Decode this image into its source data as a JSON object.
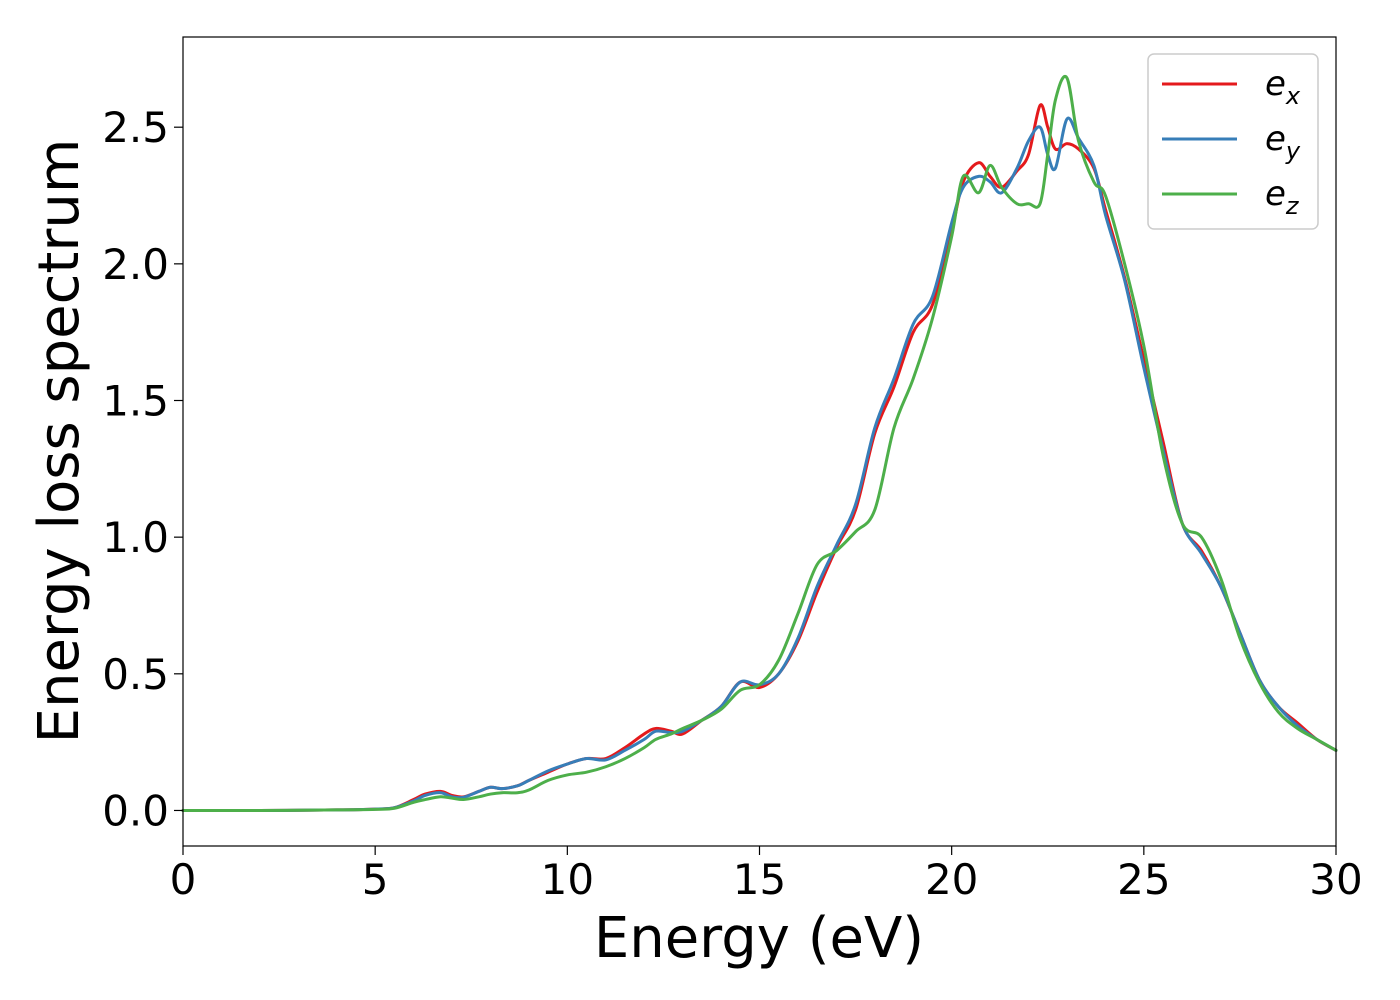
{
  "chart_data": {
    "type": "line",
    "xlabel": "Energy (eV)",
    "ylabel": "Energy loss spectrum",
    "xlim": [
      0,
      30
    ],
    "ylim": [
      -0.13,
      2.83
    ],
    "xticks": [
      0,
      5,
      10,
      15,
      20,
      25,
      30
    ],
    "xtick_labels": [
      "0",
      "5",
      "10",
      "15",
      "20",
      "25",
      "30"
    ],
    "yticks": [
      0.0,
      0.5,
      1.0,
      1.5,
      2.0,
      2.5
    ],
    "ytick_labels": [
      "0.0",
      "0.5",
      "1.0",
      "1.5",
      "2.0",
      "2.5"
    ],
    "grid": false,
    "legend": {
      "position": "top-right",
      "entries": [
        {
          "base": "e",
          "sub": "x"
        },
        {
          "base": "e",
          "sub": "y"
        },
        {
          "base": "e",
          "sub": "z"
        }
      ]
    },
    "series": [
      {
        "name": "e_x",
        "color": "#e41a1c",
        "x": [
          0,
          2,
          4,
          5,
          5.5,
          6,
          6.3,
          6.7,
          7,
          7.3,
          7.7,
          8,
          8.3,
          8.7,
          9,
          9.5,
          10,
          10.5,
          11,
          11.5,
          12,
          12.3,
          12.7,
          13,
          13.5,
          14,
          14.5,
          15,
          15.5,
          16,
          16.5,
          17,
          17.5,
          18,
          18.5,
          19,
          19.5,
          20,
          20.3,
          20.7,
          21,
          21.3,
          21.7,
          22,
          22.3,
          22.5,
          22.7,
          23,
          23.3,
          23.7,
          24,
          24.5,
          25,
          25.5,
          26,
          26.5,
          27,
          27.5,
          28,
          28.5,
          29,
          29.5,
          30
        ],
        "y": [
          0,
          0,
          0.002,
          0.005,
          0.01,
          0.04,
          0.06,
          0.07,
          0.055,
          0.05,
          0.07,
          0.085,
          0.08,
          0.09,
          0.11,
          0.14,
          0.17,
          0.19,
          0.19,
          0.23,
          0.28,
          0.3,
          0.29,
          0.28,
          0.33,
          0.38,
          0.47,
          0.45,
          0.5,
          0.62,
          0.8,
          0.96,
          1.1,
          1.38,
          1.55,
          1.75,
          1.85,
          2.12,
          2.3,
          2.37,
          2.32,
          2.28,
          2.34,
          2.4,
          2.58,
          2.5,
          2.42,
          2.44,
          2.42,
          2.35,
          2.2,
          1.95,
          1.65,
          1.35,
          1.05,
          0.95,
          0.82,
          0.65,
          0.48,
          0.38,
          0.32,
          0.26,
          0.22
        ]
      },
      {
        "name": "e_y",
        "color": "#377eb8",
        "x": [
          0,
          2,
          4,
          5,
          5.5,
          6,
          6.3,
          6.7,
          7,
          7.3,
          7.7,
          8,
          8.3,
          8.7,
          9,
          9.5,
          10,
          10.5,
          11,
          11.5,
          12,
          12.3,
          12.7,
          13,
          13.5,
          14,
          14.5,
          15,
          15.5,
          16,
          16.5,
          17,
          17.5,
          18,
          18.5,
          19,
          19.5,
          20,
          20.3,
          20.7,
          21,
          21.3,
          21.7,
          22,
          22.3,
          22.5,
          22.7,
          23,
          23.3,
          23.7,
          24,
          24.5,
          25,
          25.5,
          26,
          26.5,
          27,
          27.5,
          28,
          28.5,
          29,
          29.5,
          30
        ],
        "y": [
          0,
          0,
          0.002,
          0.005,
          0.01,
          0.035,
          0.055,
          0.065,
          0.05,
          0.048,
          0.07,
          0.085,
          0.08,
          0.09,
          0.11,
          0.145,
          0.17,
          0.19,
          0.185,
          0.22,
          0.26,
          0.29,
          0.285,
          0.29,
          0.33,
          0.38,
          0.47,
          0.46,
          0.5,
          0.63,
          0.82,
          0.97,
          1.12,
          1.4,
          1.58,
          1.78,
          1.88,
          2.15,
          2.28,
          2.32,
          2.3,
          2.26,
          2.35,
          2.45,
          2.5,
          2.4,
          2.35,
          2.53,
          2.46,
          2.36,
          2.18,
          1.94,
          1.62,
          1.32,
          1.05,
          0.94,
          0.82,
          0.65,
          0.48,
          0.38,
          0.31,
          0.26,
          0.22
        ]
      },
      {
        "name": "e_z",
        "color": "#4daf4a",
        "x": [
          0,
          2,
          4,
          5,
          5.5,
          6,
          6.3,
          6.7,
          7,
          7.3,
          7.7,
          8,
          8.3,
          8.7,
          9,
          9.5,
          10,
          10.5,
          11,
          11.5,
          12,
          12.3,
          12.7,
          13,
          13.5,
          14,
          14.5,
          15,
          15.5,
          16,
          16.5,
          17,
          17.5,
          18,
          18.5,
          19,
          19.5,
          20,
          20.3,
          20.7,
          21,
          21.3,
          21.7,
          22,
          22.3,
          22.5,
          22.7,
          23,
          23.3,
          23.7,
          24,
          24.5,
          25,
          25.5,
          26,
          26.5,
          27,
          27.5,
          28,
          28.5,
          29,
          29.5,
          30
        ],
        "y": [
          0,
          0,
          0.002,
          0.004,
          0.008,
          0.03,
          0.04,
          0.05,
          0.045,
          0.04,
          0.05,
          0.06,
          0.065,
          0.065,
          0.075,
          0.11,
          0.13,
          0.14,
          0.16,
          0.19,
          0.23,
          0.26,
          0.28,
          0.3,
          0.33,
          0.37,
          0.44,
          0.46,
          0.55,
          0.72,
          0.9,
          0.95,
          1.02,
          1.1,
          1.4,
          1.58,
          1.8,
          2.1,
          2.32,
          2.26,
          2.36,
          2.28,
          2.22,
          2.22,
          2.22,
          2.4,
          2.6,
          2.68,
          2.45,
          2.3,
          2.25,
          2.0,
          1.7,
          1.3,
          1.05,
          1.0,
          0.85,
          0.63,
          0.47,
          0.36,
          0.3,
          0.26,
          0.22
        ]
      }
    ]
  }
}
